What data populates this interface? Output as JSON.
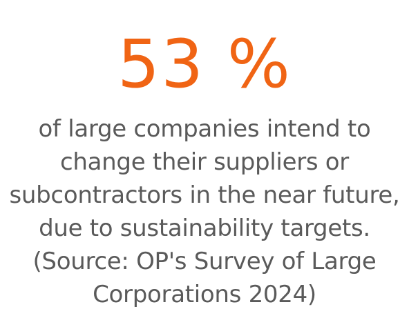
{
  "highlight": {
    "value": "53 %",
    "caption": "of large companies intend to change their suppliers or subcontractors in the near future, due to sustainability targets. (Source: OP's Survey of Large Corporations 2024)"
  },
  "colors": {
    "accent": "#f06414",
    "text": "#5a5a5a",
    "background": "#ffffff"
  }
}
